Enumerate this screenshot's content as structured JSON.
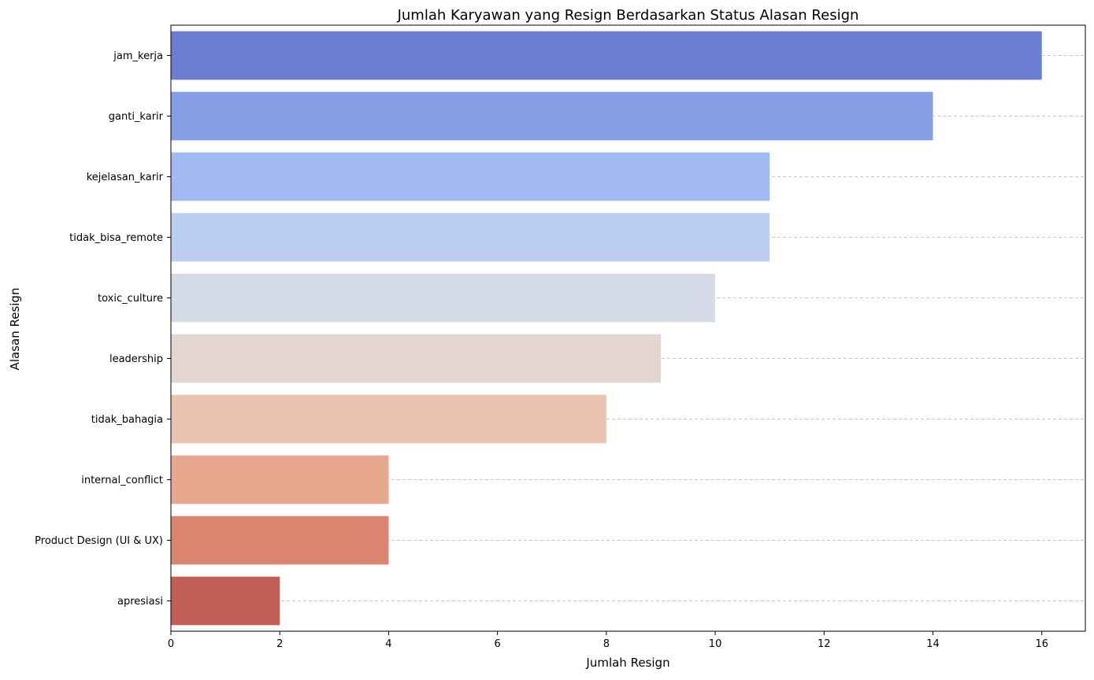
{
  "chart_data": {
    "type": "bar",
    "orientation": "horizontal",
    "title": "Jumlah Karyawan yang Resign Berdasarkan Status Alasan Resign",
    "xlabel": "Jumlah Resign",
    "ylabel": "Alasan Resign",
    "categories": [
      "jam_kerja",
      "ganti_karir",
      "kejelasan_karir",
      "tidak_bisa_remote",
      "toxic_culture",
      "leadership",
      "tidak_bahagia",
      "internal_conflict",
      "Product Design (UI & UX)",
      "apresiasi"
    ],
    "values": [
      16,
      14,
      11,
      11,
      10,
      9,
      8,
      4,
      4,
      2
    ],
    "colors": [
      "#6a7fd1",
      "#859ee5",
      "#a2baf2",
      "#bccff2",
      "#d4dae6",
      "#e3d6cf",
      "#eac4b0",
      "#e6a78f",
      "#d9856f",
      "#c25e53"
    ],
    "xlim": [
      0,
      16.8
    ],
    "xticks": [
      0,
      2,
      4,
      6,
      8,
      10,
      12,
      14,
      16
    ],
    "grid": "x-gridlines dashed"
  }
}
